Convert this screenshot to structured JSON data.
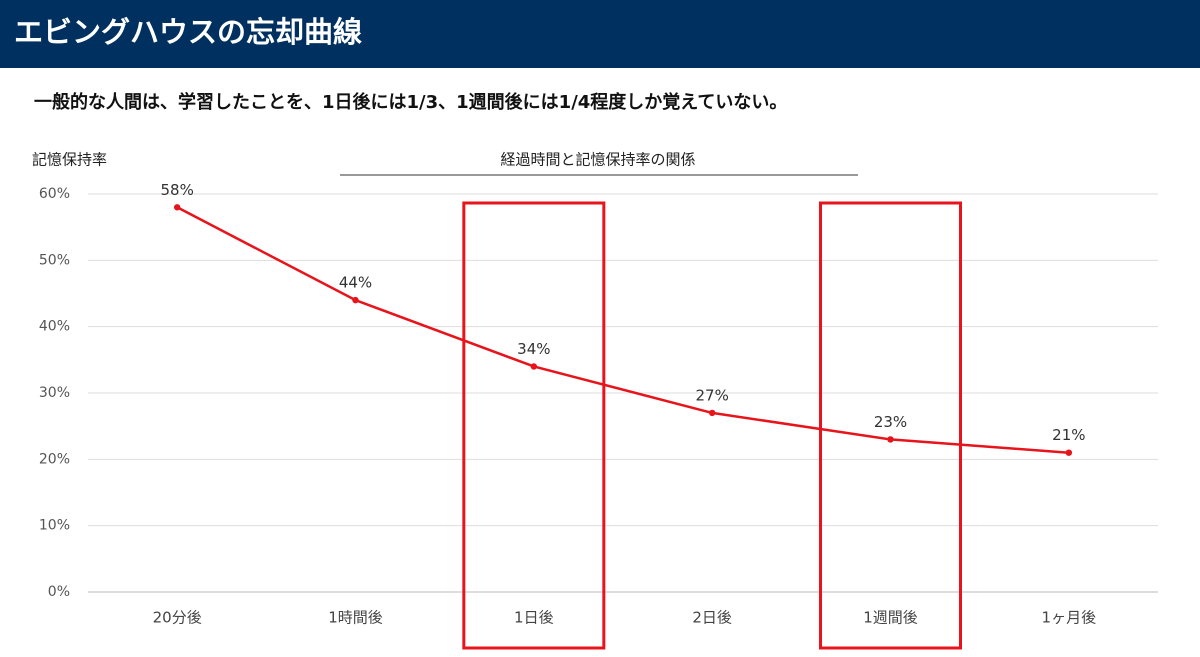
{
  "header": {
    "title": "エビングハウスの忘却曲線"
  },
  "subtitle": "一般的な人間は、学習したことを、1日後には1/3、1週間後には1/4程度しか覚えていない。",
  "chart_data": {
    "type": "line",
    "title": "経過時間と記憶保持率の関係",
    "y_label": "記憶保持率",
    "categories": [
      "20分後",
      "1時間後",
      "1日後",
      "2日後",
      "1週間後",
      "1ヶ月後"
    ],
    "values": [
      58,
      44,
      34,
      27,
      23,
      21
    ],
    "value_labels": [
      "58%",
      "44%",
      "34%",
      "27%",
      "23%",
      "21%"
    ],
    "color": "#e8141b",
    "ylim": [
      0,
      60
    ],
    "yticks": [
      {
        "value": 0,
        "label": "0%"
      },
      {
        "value": 10,
        "label": "10%"
      },
      {
        "value": 20,
        "label": "20%"
      },
      {
        "value": 30,
        "label": "30%"
      },
      {
        "value": 40,
        "label": "40%"
      },
      {
        "value": 50,
        "label": "50%"
      },
      {
        "value": 60,
        "label": "60%"
      }
    ],
    "grid": true,
    "highlight_categories": [
      2,
      4
    ],
    "highlight_color": "#e8141b"
  }
}
